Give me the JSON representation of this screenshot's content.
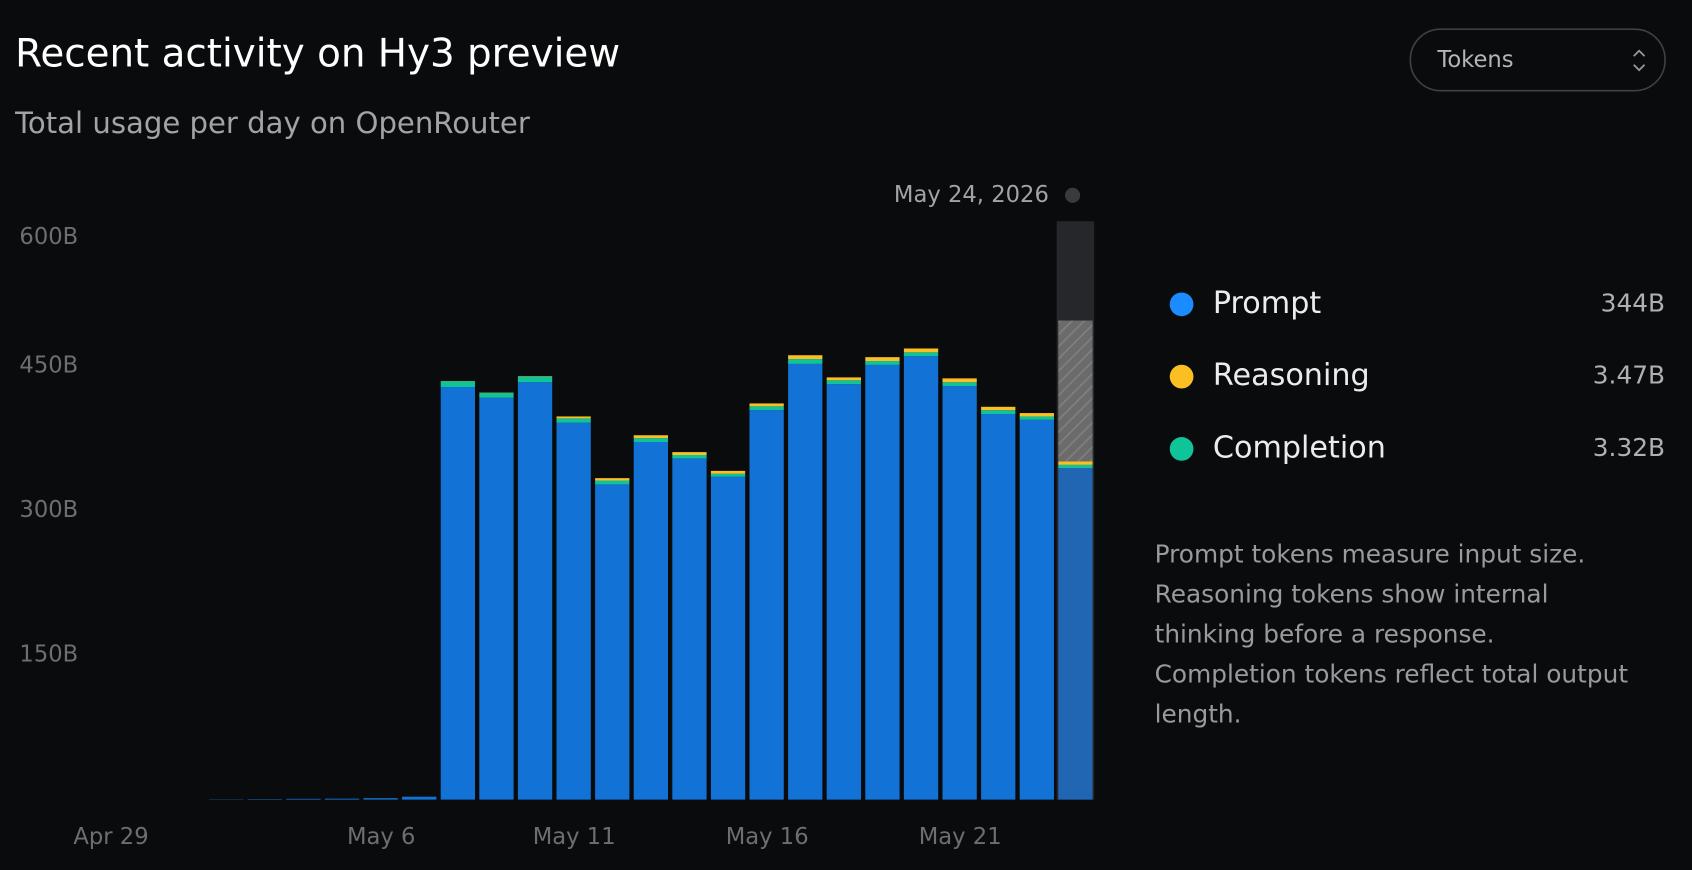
{
  "chart_data": {
    "type": "stacked-bar",
    "title": "Recent activity on Hy3 preview",
    "subtitle": "Total usage per day on OpenRouter",
    "selector": "Tokens",
    "tooltip_date": "May 24, 2026",
    "categories": [
      "Apr 29",
      null,
      null,
      null,
      null,
      null,
      null,
      "May 6",
      null,
      null,
      null,
      null,
      "May 11",
      null,
      null,
      null,
      null,
      "May 16",
      null,
      null,
      null,
      null,
      "May 21",
      null,
      null,
      null
    ],
    "series": [
      {
        "name": "Prompt",
        "color": "#1272d6",
        "values": [
          0,
          0,
          0,
          0.3,
          0.5,
          0.8,
          1,
          1.5,
          3,
          428,
          417,
          433,
          391,
          327,
          371,
          354,
          335,
          404,
          452,
          431,
          451,
          460,
          429,
          400,
          394,
          344
        ],
        "value_labels": [
          null,
          null,
          null,
          null,
          null,
          null,
          null,
          null,
          null,
          null,
          null,
          null,
          null,
          null,
          null,
          null,
          null,
          null,
          null,
          null,
          null,
          null,
          null,
          null,
          null,
          "344B"
        ]
      },
      {
        "name": "Completion",
        "color": "#10c49a",
        "values": [
          0,
          0,
          0,
          0.02,
          0.02,
          0.02,
          0.02,
          0.02,
          0.05,
          6,
          5,
          6,
          4.5,
          4,
          4,
          3.5,
          3,
          4,
          5,
          4,
          4,
          4,
          4,
          4,
          3.5,
          3.32
        ],
        "value_labels": [
          null,
          null,
          null,
          null,
          null,
          null,
          null,
          null,
          null,
          null,
          null,
          null,
          null,
          null,
          null,
          null,
          null,
          null,
          null,
          null,
          null,
          null,
          null,
          null,
          null,
          "3.32B"
        ]
      },
      {
        "name": "Reasoning",
        "color": "#fbbf24",
        "values": [
          0,
          0,
          0,
          0,
          0,
          0,
          0,
          0,
          0,
          0.3,
          0.3,
          0.3,
          2,
          2.5,
          3,
          3,
          3,
          3,
          4,
          3,
          4,
          4,
          4,
          3.5,
          3.5,
          3.47
        ],
        "value_labels": [
          null,
          null,
          null,
          null,
          null,
          null,
          null,
          null,
          null,
          null,
          null,
          null,
          null,
          null,
          null,
          null,
          null,
          null,
          null,
          null,
          null,
          null,
          null,
          null,
          null,
          "3.47B"
        ]
      }
    ],
    "legend_order": [
      0,
      2,
      1
    ],
    "projected_total": 497,
    "ylim": [
      0,
      600
    ],
    "yticks": [
      {
        "value": 150,
        "label": "150B"
      },
      {
        "value": 300,
        "label": "300B"
      },
      {
        "value": 450,
        "label": "450B"
      },
      {
        "value": 600,
        "label": "600B"
      }
    ],
    "grid": false,
    "description_lines": [
      "Prompt tokens measure input size.",
      "Reasoning tokens show internal",
      "thinking before a response.",
      "Completion tokens reflect total output",
      "length."
    ]
  }
}
